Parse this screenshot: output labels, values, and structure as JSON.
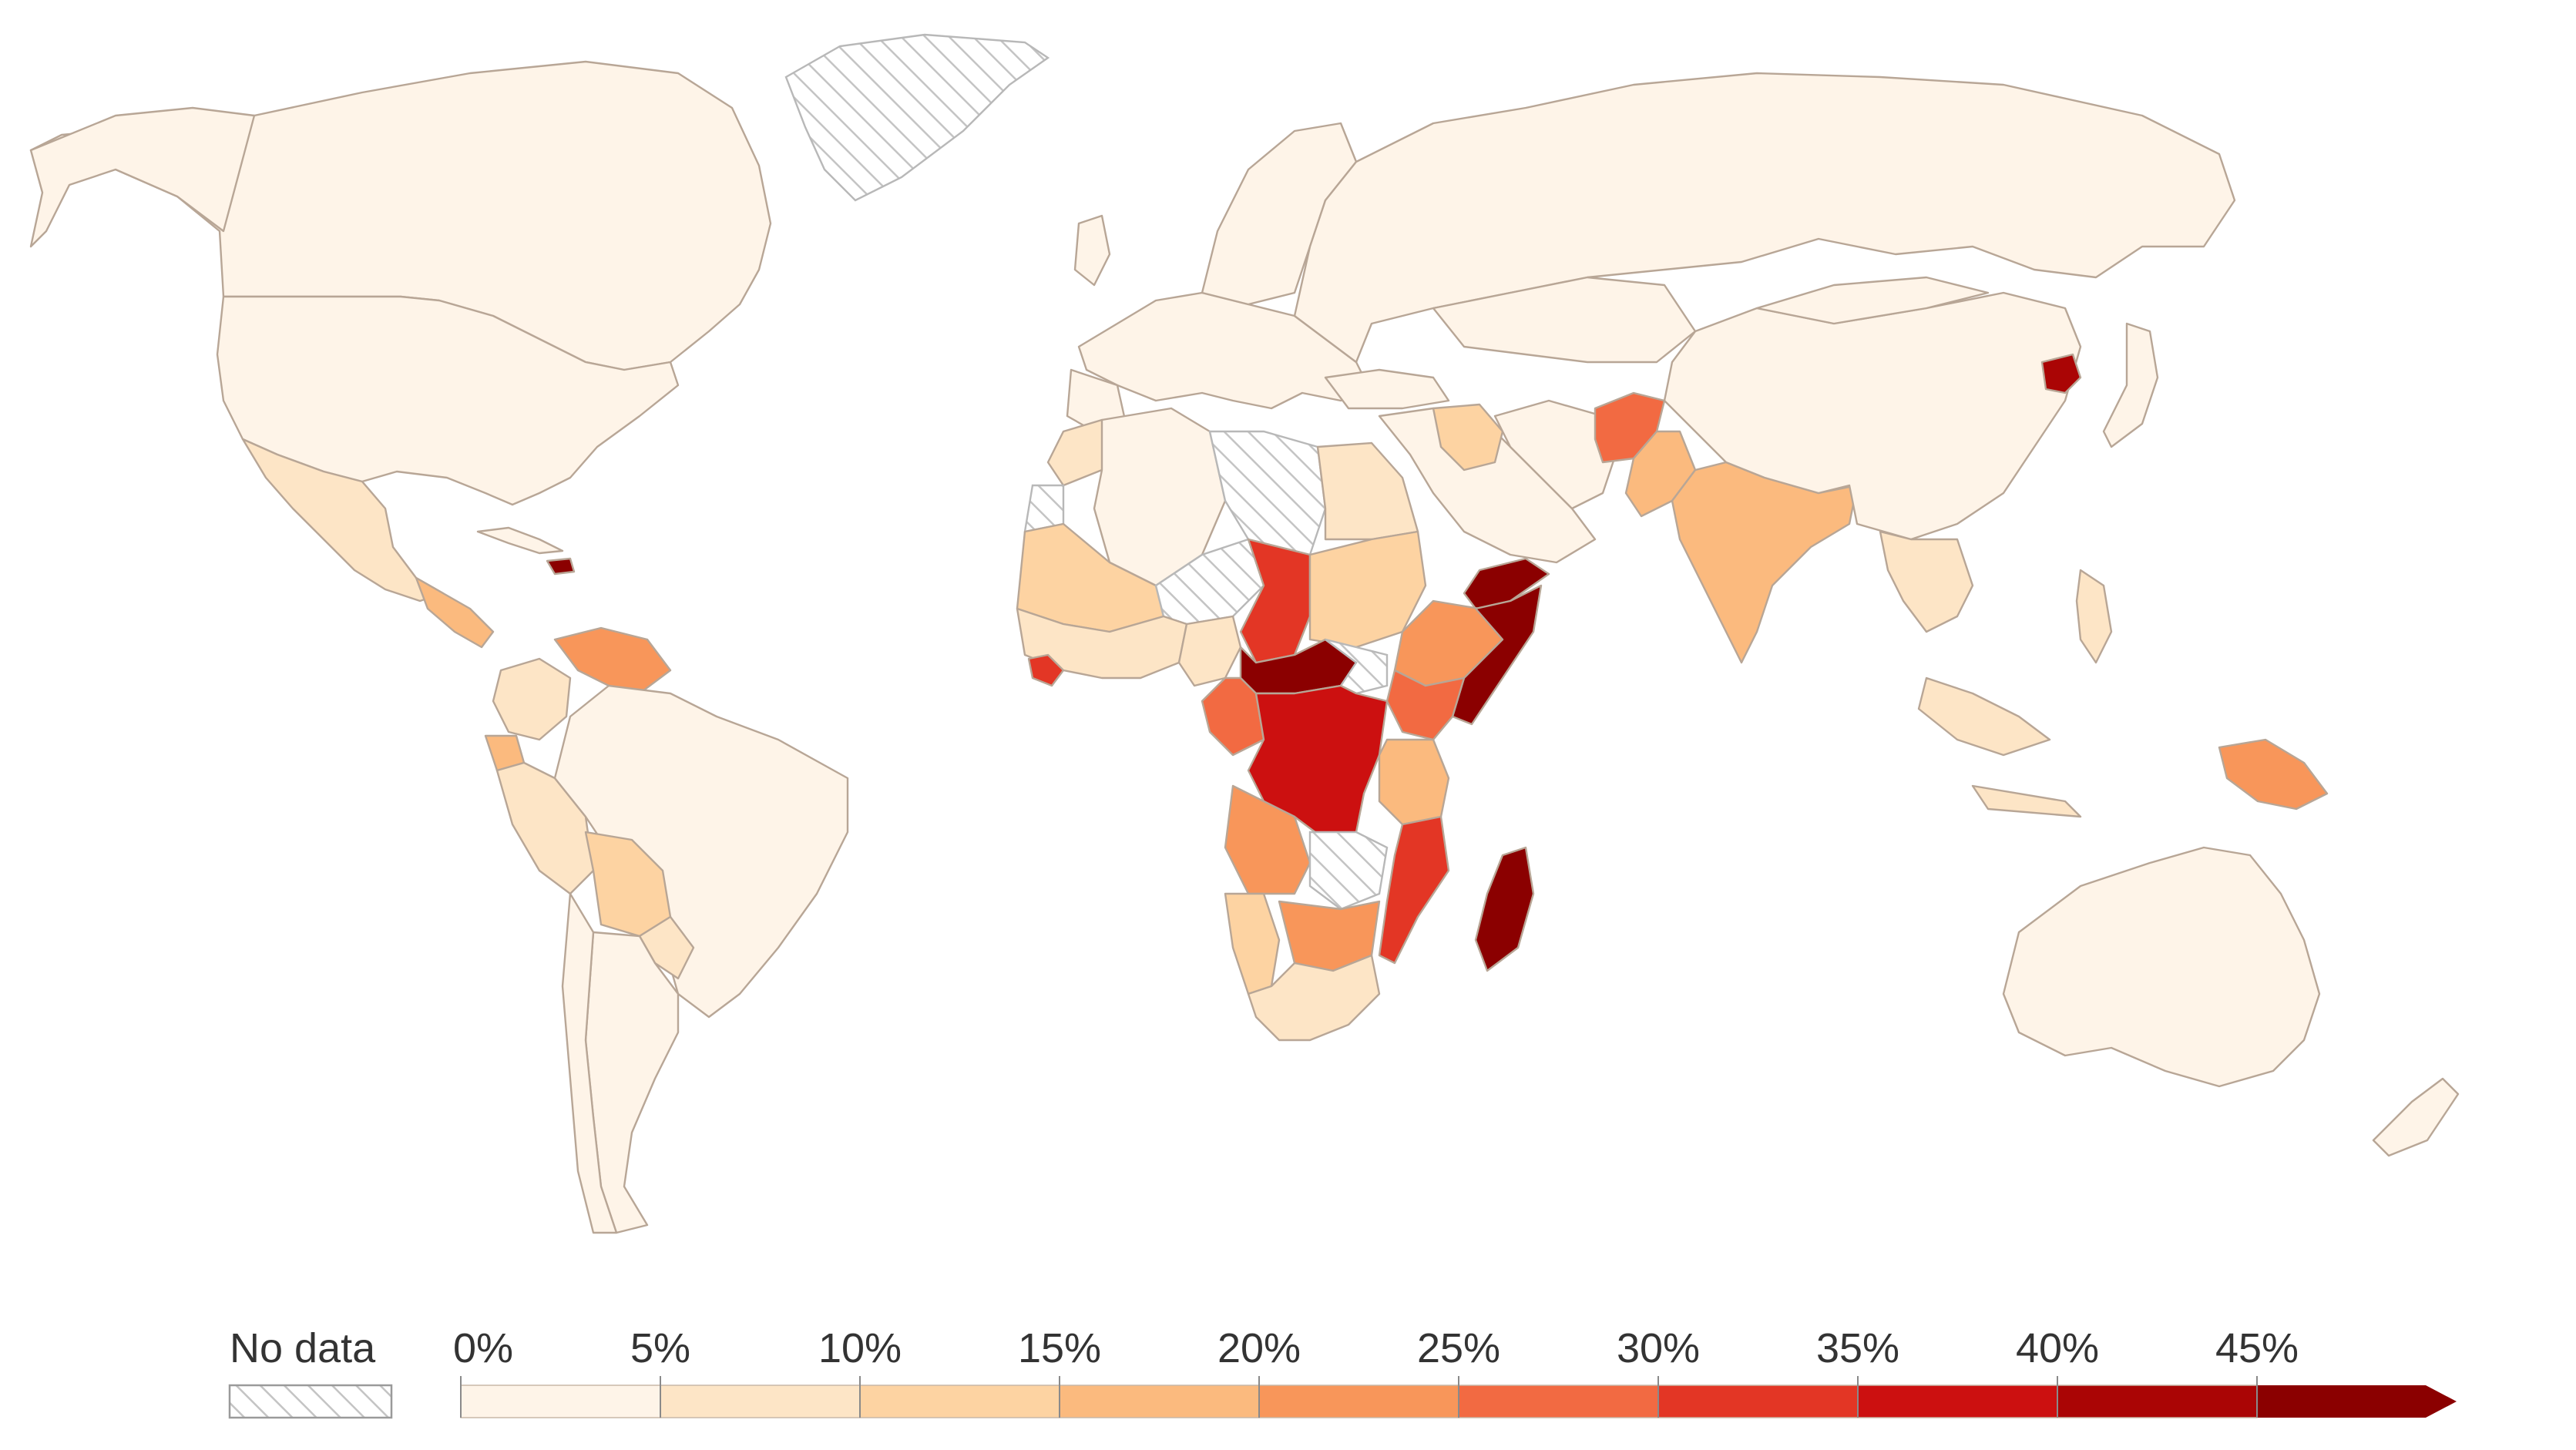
{
  "legend": {
    "no_data_label": "No data",
    "tick_labels": [
      "0%",
      "5%",
      "10%",
      "15%",
      "20%",
      "25%",
      "30%",
      "35%",
      "40%",
      "45%"
    ],
    "bins": [
      {
        "from": 0,
        "to": 5,
        "color": "#fef4e8"
      },
      {
        "from": 5,
        "to": 10,
        "color": "#fde5c6"
      },
      {
        "from": 10,
        "to": 15,
        "color": "#fdd3a2"
      },
      {
        "from": 15,
        "to": 20,
        "color": "#fbba7e"
      },
      {
        "from": 20,
        "to": 25,
        "color": "#f8965a"
      },
      {
        "from": 25,
        "to": 30,
        "color": "#f26a42"
      },
      {
        "from": 30,
        "to": 35,
        "color": "#e33625"
      },
      {
        "from": 35,
        "to": 40,
        "color": "#cc1010"
      },
      {
        "from": 40,
        "to": 45,
        "color": "#aa0505"
      },
      {
        "from": 45,
        "to": 50,
        "color": "#8b0000"
      }
    ],
    "no_data_color": "#ffffff"
  }
}
